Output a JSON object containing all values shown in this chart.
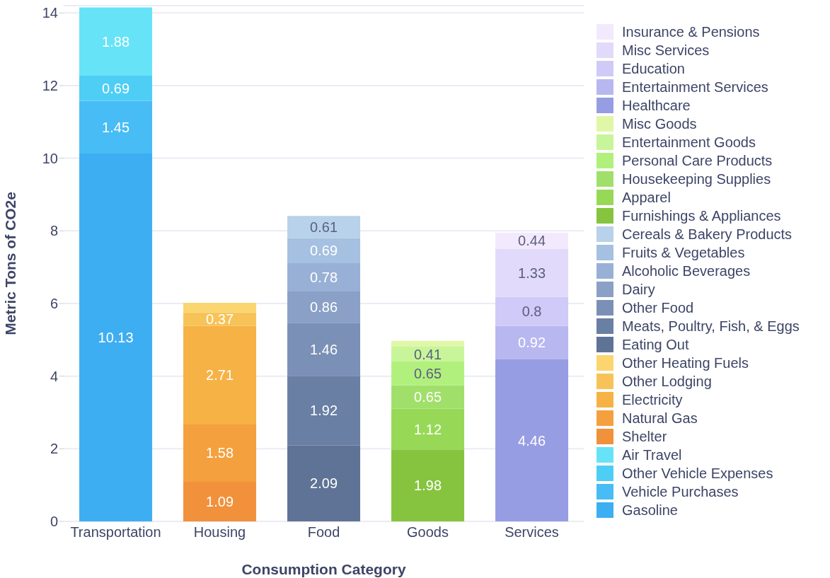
{
  "chart_data": {
    "type": "bar",
    "stacked": true,
    "xlabel": "Consumption Category",
    "ylabel": "Metric Tons of CO2e",
    "categories": [
      "Transportation",
      "Housing",
      "Food",
      "Goods",
      "Services"
    ],
    "ylim": [
      0,
      14.2
    ],
    "yticks": [
      0,
      2,
      4,
      6,
      8,
      10,
      12,
      14
    ],
    "grid": "y",
    "legend": "right",
    "series": [
      {
        "name": "Gasoline",
        "color": "#3eaef2",
        "values": [
          10.13,
          null,
          null,
          null,
          null
        ],
        "value_labels": [
          "10.13",
          null,
          null,
          null,
          null
        ]
      },
      {
        "name": "Vehicle Purchases",
        "color": "#47bcf5",
        "values": [
          1.45,
          null,
          null,
          null,
          null
        ],
        "value_labels": [
          "1.45",
          null,
          null,
          null,
          null
        ]
      },
      {
        "name": "Other Vehicle Expenses",
        "color": "#4ecef5",
        "values": [
          0.69,
          null,
          null,
          null,
          null
        ],
        "value_labels": [
          "0.69",
          null,
          null,
          null,
          null
        ]
      },
      {
        "name": "Air Travel",
        "color": "#66e3f7",
        "values": [
          1.88,
          null,
          null,
          null,
          null
        ],
        "value_labels": [
          "1.88",
          null,
          null,
          null,
          null
        ]
      },
      {
        "name": "Shelter",
        "color": "#f2913c",
        "values": [
          null,
          1.09,
          null,
          null,
          null
        ],
        "value_labels": [
          null,
          "1.09",
          null,
          null,
          null
        ]
      },
      {
        "name": "Natural Gas",
        "color": "#f4a03e",
        "values": [
          null,
          1.58,
          null,
          null,
          null
        ],
        "value_labels": [
          null,
          "1.58",
          null,
          null,
          null
        ]
      },
      {
        "name": "Electricity",
        "color": "#f6b245",
        "values": [
          null,
          2.71,
          null,
          null,
          null
        ],
        "value_labels": [
          null,
          "2.71",
          null,
          null,
          null
        ]
      },
      {
        "name": "Other Lodging",
        "color": "#f7c358",
        "values": [
          null,
          0.37,
          null,
          null,
          null
        ],
        "value_labels": [
          null,
          "0.37",
          null,
          null,
          null
        ]
      },
      {
        "name": "Other Heating Fuels",
        "color": "#fad570",
        "values": [
          null,
          0.27,
          null,
          null,
          null
        ],
        "value_labels": [
          null,
          null,
          null,
          null,
          null
        ]
      },
      {
        "name": "Eating Out",
        "color": "#5f7396",
        "values": [
          null,
          null,
          2.09,
          null,
          null
        ],
        "value_labels": [
          null,
          null,
          "2.09",
          null,
          null
        ]
      },
      {
        "name": "Meats, Poultry, Fish, & Eggs",
        "color": "#6a7fa4",
        "values": [
          null,
          null,
          1.92,
          null,
          null
        ],
        "value_labels": [
          null,
          null,
          "1.92",
          null,
          null
        ]
      },
      {
        "name": "Other Food",
        "color": "#7b90b6",
        "values": [
          null,
          null,
          1.46,
          null,
          null
        ],
        "value_labels": [
          null,
          null,
          "1.46",
          null,
          null
        ]
      },
      {
        "name": "Dairy",
        "color": "#8aa0c6",
        "values": [
          null,
          null,
          0.86,
          null,
          null
        ],
        "value_labels": [
          null,
          null,
          "0.86",
          null,
          null
        ]
      },
      {
        "name": "Alcoholic Beverages",
        "color": "#98b0d6",
        "values": [
          null,
          null,
          0.78,
          null,
          null
        ],
        "value_labels": [
          null,
          null,
          "0.78",
          null,
          null
        ]
      },
      {
        "name": "Fruits & Vegetables",
        "color": "#a5c0e0",
        "values": [
          null,
          null,
          0.69,
          null,
          null
        ],
        "value_labels": [
          null,
          null,
          "0.69",
          null,
          null
        ]
      },
      {
        "name": "Cereals & Bakery Products",
        "color": "#b7d2ea",
        "values": [
          null,
          null,
          0.61,
          null,
          null
        ],
        "value_labels": [
          null,
          null,
          "0.61",
          null,
          null
        ]
      },
      {
        "name": "Furnishings & Appliances",
        "color": "#86c440",
        "values": [
          null,
          null,
          null,
          1.98,
          null
        ],
        "value_labels": [
          null,
          null,
          null,
          "1.98",
          null
        ]
      },
      {
        "name": "Apparel",
        "color": "#97d957",
        "values": [
          null,
          null,
          null,
          1.12,
          null
        ],
        "value_labels": [
          null,
          null,
          null,
          "1.12",
          null
        ]
      },
      {
        "name": "Housekeeping Supplies",
        "color": "#a0e06a",
        "values": [
          null,
          null,
          null,
          0.65,
          null
        ],
        "value_labels": [
          null,
          null,
          null,
          "0.65",
          null
        ]
      },
      {
        "name": "Personal Care Products",
        "color": "#b2f07e",
        "values": [
          null,
          null,
          null,
          0.65,
          null
        ],
        "value_labels": [
          null,
          null,
          null,
          "0.65",
          null
        ]
      },
      {
        "name": "Entertainment Goods",
        "color": "#c8f59a",
        "values": [
          null,
          null,
          null,
          0.41,
          null
        ],
        "value_labels": [
          null,
          null,
          null,
          "0.41",
          null
        ]
      },
      {
        "name": "Misc Goods",
        "color": "#e0f7a8",
        "values": [
          null,
          null,
          null,
          0.16,
          null
        ],
        "value_labels": [
          null,
          null,
          null,
          null,
          null
        ]
      },
      {
        "name": "Healthcare",
        "color": "#979de3",
        "values": [
          null,
          null,
          null,
          null,
          4.46
        ],
        "value_labels": [
          null,
          null,
          null,
          null,
          "4.46"
        ]
      },
      {
        "name": "Entertainment Services",
        "color": "#b9b7f0",
        "values": [
          null,
          null,
          null,
          null,
          0.92
        ],
        "value_labels": [
          null,
          null,
          null,
          null,
          "0.92"
        ]
      },
      {
        "name": "Education",
        "color": "#cfcaf7",
        "values": [
          null,
          null,
          null,
          null,
          0.8
        ],
        "value_labels": [
          null,
          null,
          null,
          null,
          "0.8"
        ]
      },
      {
        "name": "Misc Services",
        "color": "#e2dafa",
        "values": [
          null,
          null,
          null,
          null,
          1.33
        ],
        "value_labels": [
          null,
          null,
          null,
          null,
          "1.33"
        ]
      },
      {
        "name": "Insurance & Pensions",
        "color": "#f3e9fc",
        "values": [
          null,
          null,
          null,
          null,
          0.44
        ],
        "value_labels": [
          null,
          null,
          null,
          null,
          "0.44"
        ]
      }
    ]
  }
}
